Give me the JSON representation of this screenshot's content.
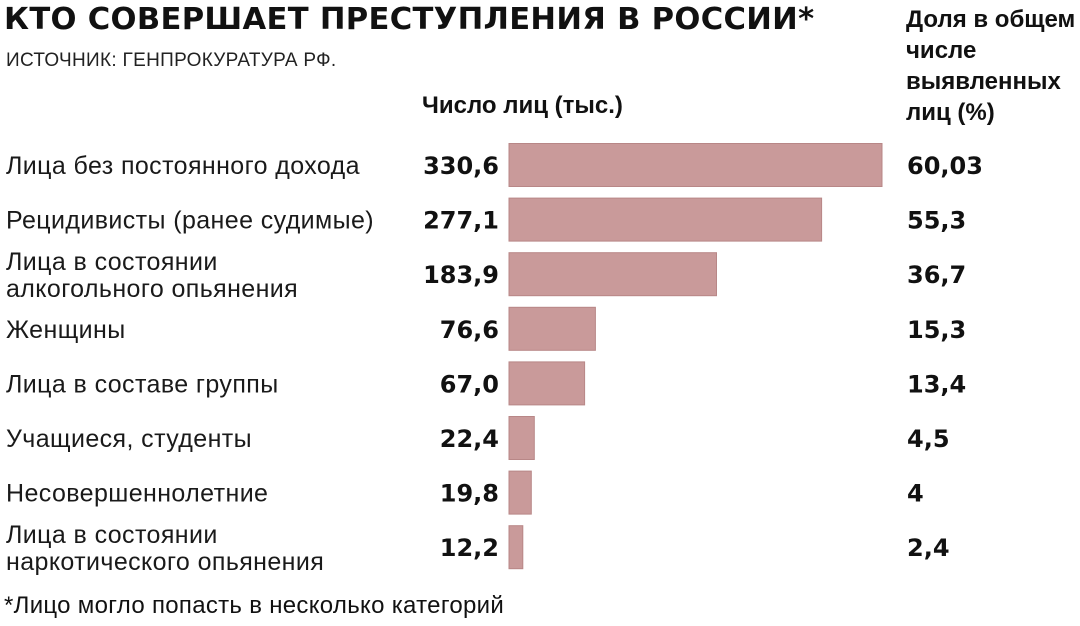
{
  "header": {
    "title": "КТО СОВЕРШАЕТ ПРЕСТУПЛЕНИЯ В РОССИИ*",
    "source": "ИСТОЧНИК: ГЕНПРОКУРАТУРА РФ.",
    "col_left": "Число лиц (тыс.)",
    "col_right": "Доля в общем числе выявленных лиц (%)"
  },
  "footnote": "*Лицо могло попасть в несколько категорий",
  "colors": {
    "bar": "#c99a9a",
    "bar_stroke": "#b88787"
  },
  "chart_data": {
    "type": "bar",
    "orientation": "horizontal",
    "categories": [
      [
        "Лица без постоянного дохода"
      ],
      [
        "Рецидивисты (ранее судимые)"
      ],
      [
        "Лица в состоянии",
        "алкогольного опьянения"
      ],
      [
        "Женщины"
      ],
      [
        "Лица в составе группы"
      ],
      [
        "Учащиеся, студенты"
      ],
      [
        "Несовершеннолетние"
      ],
      [
        "Лица в состоянии",
        "наркотического опьянения"
      ]
    ],
    "value_labels": [
      "330,6",
      "277,1",
      "183,9",
      "76,6",
      "67,0",
      "22,4",
      "19,8",
      "12,2"
    ],
    "values": [
      330.6,
      277.1,
      183.9,
      76.6,
      67.0,
      22.4,
      19.8,
      12.2
    ],
    "share_labels": [
      "60,03",
      "55,3",
      "36,7",
      "15,3",
      "13,4",
      "4,5",
      "4",
      "2,4"
    ],
    "shares": [
      60.03,
      55.3,
      36.7,
      15.3,
      13.4,
      4.5,
      4,
      2.4
    ]
  }
}
